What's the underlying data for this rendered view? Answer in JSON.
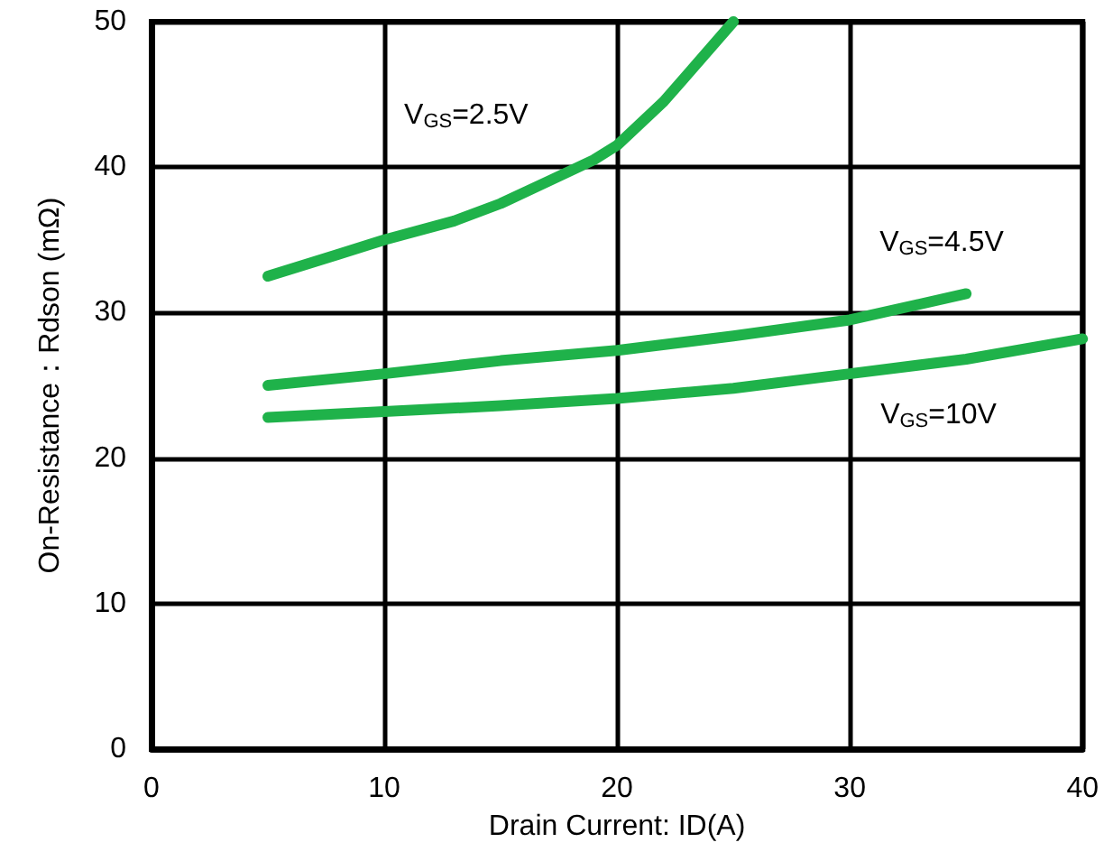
{
  "chart_data": {
    "type": "line",
    "xlabel": "Drain Current: ID(A)",
    "ylabel": "On-Resistance：Rdson (mΩ)",
    "xlim": [
      0,
      40
    ],
    "xticks": [
      0,
      10,
      20,
      30,
      40
    ],
    "ylim": [
      0,
      50
    ],
    "yticks": [
      0,
      10,
      20,
      30,
      40,
      50
    ],
    "grid": true,
    "marker": "none",
    "line_style": "solid",
    "series": [
      {
        "name": "V$_{GS}$=2.5V",
        "color": "#1fb24a",
        "x": [
          5,
          8,
          10,
          13,
          15,
          17,
          19,
          20,
          22,
          25
        ],
        "values": [
          32.5,
          34,
          35,
          36.3,
          37.5,
          39,
          40.5,
          41.5,
          44.5,
          50
        ]
      },
      {
        "name": "V$_{GS}$=4.5V",
        "color": "#1fb24a",
        "x": [
          5,
          10,
          15,
          20,
          25,
          30,
          35
        ],
        "values": [
          25,
          25.8,
          26.7,
          27.4,
          28.4,
          29.5,
          31.3
        ]
      },
      {
        "name": "V$_{GS}$=10V",
        "color": "#1fb24a",
        "x": [
          5,
          10,
          15,
          20,
          25,
          30,
          35,
          40
        ],
        "values": [
          22.8,
          23.2,
          23.6,
          24.1,
          24.8,
          25.8,
          26.8,
          28.2
        ]
      }
    ]
  }
}
